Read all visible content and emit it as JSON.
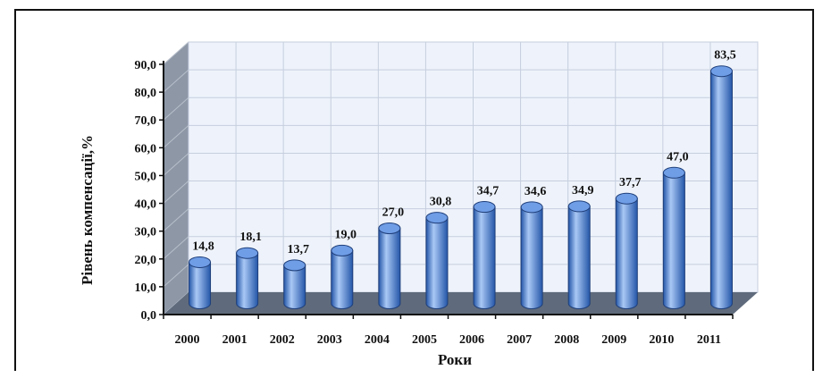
{
  "chart_data": {
    "type": "bar",
    "style": "3d-cylinder",
    "categories": [
      "2000",
      "2001",
      "2002",
      "2003",
      "2004",
      "2005",
      "2006",
      "2007",
      "2008",
      "2009",
      "2010",
      "2011"
    ],
    "values": [
      14.8,
      18.1,
      13.7,
      19.0,
      27.0,
      30.8,
      34.7,
      34.6,
      34.9,
      37.7,
      47.0,
      83.5
    ],
    "data_labels": [
      "14,8",
      "18,1",
      "13,7",
      "19,0",
      "27,0",
      "30,8",
      "34,7",
      "34,6",
      "34,9",
      "37,7",
      "47,0",
      "83,5"
    ],
    "title": "",
    "xlabel": "Роки",
    "ylabel": "Рівень компенсації,%",
    "ylim": [
      0,
      90
    ],
    "yticks": [
      0,
      10,
      20,
      30,
      40,
      50,
      60,
      70,
      80,
      90
    ],
    "ytick_labels": [
      "0,0",
      "10,0",
      "20,0",
      "30,0",
      "40,0",
      "50,0",
      "60,0",
      "70,0",
      "80,0",
      "90,0"
    ],
    "grid": true,
    "legend": "none",
    "colors": {
      "bar_fill": "#4f86e0",
      "bar_light": "#a9c8f5",
      "bar_dark": "#2456a8",
      "bar_top": "#6f9de6",
      "wall": "#eef3fb",
      "side_wall": "#8d97a6",
      "floor": "#5f6b7c",
      "grid": "#c6cede"
    }
  }
}
